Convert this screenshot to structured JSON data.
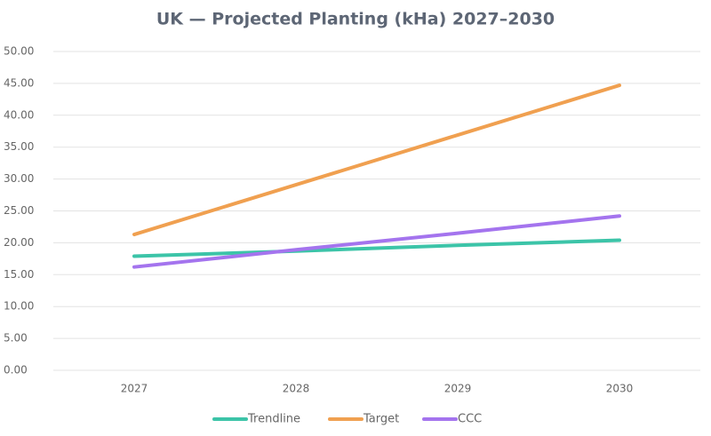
{
  "chart_data": {
    "type": "line",
    "title": "UK — Projected Planting (kHa) 2027–2030",
    "categories": [
      "2027",
      "2028",
      "2029",
      "2030"
    ],
    "series": [
      {
        "name": "Trendline",
        "color": "#3cc4a8",
        "values": [
          17.9,
          18.7,
          19.6,
          20.4
        ]
      },
      {
        "name": "Target",
        "color": "#f0a050",
        "values": [
          21.3,
          29.1,
          36.9,
          44.7
        ]
      },
      {
        "name": "CCC",
        "color": "#a474ee",
        "values": [
          16.2,
          18.9,
          21.5,
          24.2
        ]
      }
    ],
    "ylim": [
      0,
      50
    ],
    "yticks": [
      {
        "value": 0,
        "label": "0.00"
      },
      {
        "value": 5,
        "label": "5.00"
      },
      {
        "value": 10,
        "label": "10.00"
      },
      {
        "value": 15,
        "label": "15.00"
      },
      {
        "value": 20,
        "label": "20.00"
      },
      {
        "value": 25,
        "label": "25.00"
      },
      {
        "value": 30,
        "label": "30.00"
      },
      {
        "value": 35,
        "label": "35.00"
      },
      {
        "value": 40,
        "label": "40.00"
      },
      {
        "value": 45,
        "label": "45.00"
      },
      {
        "value": 50,
        "label": "50.00"
      }
    ],
    "grid": true,
    "legend": "bottom"
  }
}
